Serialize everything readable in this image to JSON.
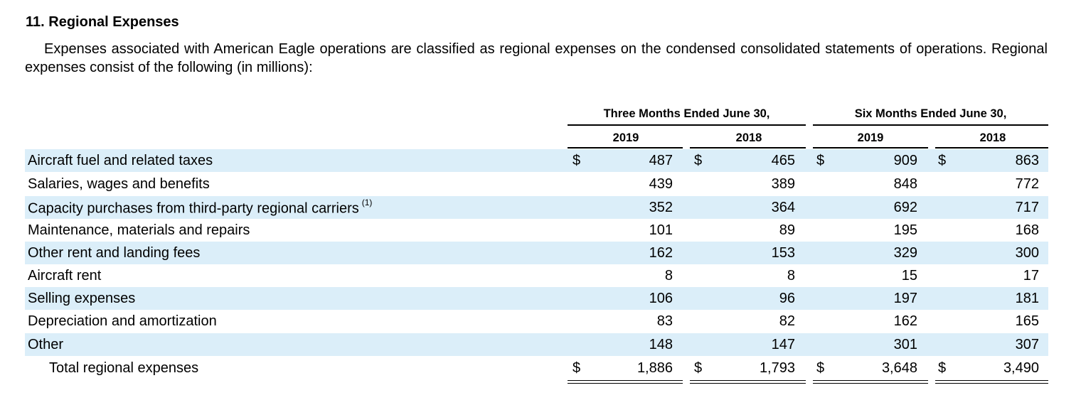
{
  "title": "11. Regional Expenses",
  "intro": "Expenses associated with American Eagle operations are classified as regional expenses on the condensed consolidated statements of operations. Regional expenses consist of the following (in millions):",
  "headers": {
    "three_months": "Three Months Ended June 30,",
    "six_months": "Six Months Ended June 30,",
    "years": [
      "2019",
      "2018",
      "2019",
      "2018"
    ]
  },
  "currency_symbol": "$",
  "rows": [
    {
      "label": "Aircraft fuel and related taxes",
      "values": [
        "487",
        "465",
        "909",
        "863"
      ]
    },
    {
      "label": "Salaries, wages and benefits",
      "values": [
        "439",
        "389",
        "848",
        "772"
      ]
    },
    {
      "label": "Capacity purchases from third-party regional carriers",
      "footnote": "(1)",
      "values": [
        "352",
        "364",
        "692",
        "717"
      ]
    },
    {
      "label": "Maintenance, materials and repairs",
      "values": [
        "101",
        "89",
        "195",
        "168"
      ]
    },
    {
      "label": "Other rent and landing fees",
      "values": [
        "162",
        "153",
        "329",
        "300"
      ]
    },
    {
      "label": "Aircraft rent",
      "values": [
        "8",
        "8",
        "15",
        "17"
      ]
    },
    {
      "label": "Selling expenses",
      "values": [
        "106",
        "96",
        "197",
        "181"
      ]
    },
    {
      "label": "Depreciation and amortization",
      "values": [
        "83",
        "82",
        "162",
        "165"
      ]
    },
    {
      "label": "Other",
      "values": [
        "148",
        "147",
        "301",
        "307"
      ]
    }
  ],
  "total": {
    "label": "Total regional expenses",
    "values": [
      "1,886",
      "1,793",
      "3,648",
      "3,490"
    ]
  }
}
